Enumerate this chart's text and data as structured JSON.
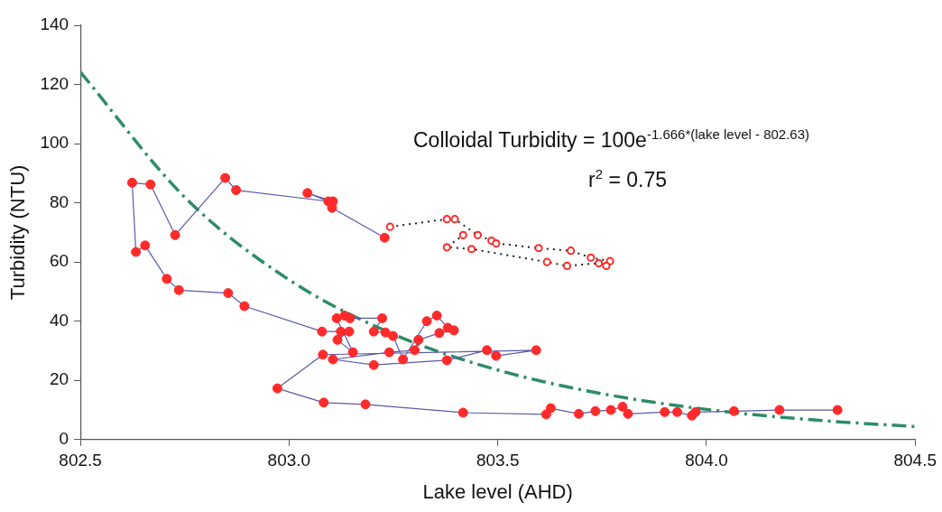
{
  "chart_data": {
    "type": "scatter",
    "xlabel": "Lake level (AHD)",
    "ylabel": "Turbidity (NTU)",
    "xlim": [
      802.5,
      804.5
    ],
    "xticks": [
      802.5,
      {
        "value": 803,
        "label": "803.0"
      },
      803.5,
      {
        "value": 804,
        "label": "804.0"
      },
      804.5
    ],
    "ylim": [
      0,
      140
    ],
    "yticks": [
      0,
      20,
      40,
      60,
      80,
      100,
      120,
      140
    ],
    "annotations": [
      "Colloidal Turbidity = 100e$^{-1.666*(lake level - 802.63)}$",
      "r$^{2}$ = 0.75"
    ],
    "series": [
      {
        "type": "line",
        "marker": "circle",
        "line_style": "solid",
        "color": "#ff2a2a",
        "x": [
          803.229,
          803.103,
          803.105,
          803.044,
          803.094,
          802.873,
          802.847,
          802.727,
          802.668,
          802.624,
          802.633,
          802.655,
          802.707,
          802.736,
          802.854,
          802.893,
          803.079,
          803.124,
          803.144,
          803.116,
          803.153,
          803.114,
          803.133,
          803.146,
          803.223,
          803.203,
          803.231,
          803.249,
          803.273,
          803.33,
          803.354,
          803.38,
          803.395,
          803.36,
          803.31,
          803.301,
          803.24,
          803.105,
          803.203,
          803.378,
          803.474,
          803.496,
          803.592,
          803.081,
          802.972,
          803.083,
          803.183,
          803.417,
          803.616,
          803.627,
          803.694,
          803.734,
          803.771,
          803.799,
          803.812,
          803.9,
          803.93,
          803.965,
          803.974,
          804.066,
          804.175,
          804.314
        ],
        "values": [
          68.2,
          78.3,
          80.5,
          83.3,
          80.5,
          84.3,
          88.4,
          69.1,
          86.2,
          86.8,
          63.4,
          65.6,
          54.3,
          50.5,
          49.5,
          45.1,
          36.5,
          36.5,
          36.5,
          33.7,
          29.5,
          41.0,
          41.9,
          41.0,
          41.0,
          36.5,
          36.2,
          35.0,
          27.1,
          40.0,
          41.9,
          37.8,
          36.9,
          36.0,
          33.7,
          30.2,
          29.5,
          27.1,
          25.2,
          26.8,
          30.2,
          28.3,
          30.2,
          28.7,
          17.3,
          12.5,
          11.9,
          9.1,
          8.5,
          10.6,
          8.7,
          9.6,
          10.0,
          11.1,
          8.7,
          9.3,
          9.3,
          8.1,
          9.3,
          9.6,
          10.0,
          10.0
        ]
      },
      {
        "type": "line",
        "marker": "circle",
        "line_style": "dotted",
        "color": "#ff2a2a",
        "x": [
          803.242,
          803.378,
          803.397,
          803.452,
          803.485,
          803.496,
          803.598,
          803.675,
          803.723,
          803.769,
          803.76,
          803.742,
          803.666,
          803.618,
          803.437,
          803.378,
          803.417
        ],
        "values": [
          71.9,
          74.5,
          74.5,
          69.1,
          67.2,
          66.3,
          64.7,
          63.8,
          61.5,
          60.3,
          58.7,
          59.6,
          58.7,
          60.0,
          64.4,
          65.0,
          69.1
        ]
      },
      {
        "type": "line",
        "marker": "none",
        "line_style": "dashed",
        "color": "#2e8b6a",
        "x": [
          802.5,
          802.75,
          803.0,
          803.25,
          803.5,
          803.75,
          804.0,
          804.25,
          804.5
        ],
        "values": [
          124.2,
          81.9,
          54.0,
          35.6,
          23.5,
          15.5,
          10.2,
          6.7,
          4.4
        ]
      }
    ]
  }
}
